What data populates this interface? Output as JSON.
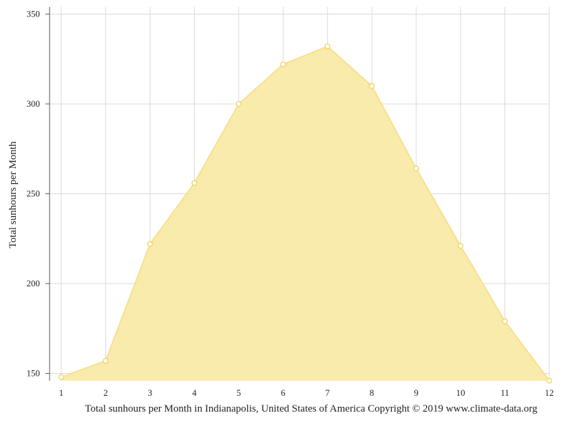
{
  "chart_data": {
    "type": "area",
    "x": [
      1,
      2,
      3,
      4,
      5,
      6,
      7,
      8,
      9,
      10,
      11,
      12
    ],
    "series": [
      {
        "values": [
          148,
          157,
          222,
          256,
          300,
          322,
          332,
          310,
          264,
          221,
          179,
          146
        ]
      }
    ],
    "xlabel": "Total sunhours per Month in Indianapolis, United States of America Copyright © 2019 www.climate-data.org",
    "ylabel": "Total sunhours per Month",
    "xlim": [
      1,
      12
    ],
    "ylim": [
      146,
      354
    ],
    "yticks": [
      150,
      200,
      250,
      300,
      350
    ],
    "grid": true,
    "legend": "none",
    "colors": {
      "fill": "#f9eaa6",
      "line": "#f7e08a",
      "marker_fill": "#ffffff",
      "marker_stroke": "#f2cf4d",
      "grid": "#d9d9d9",
      "axis": "#555555"
    }
  }
}
